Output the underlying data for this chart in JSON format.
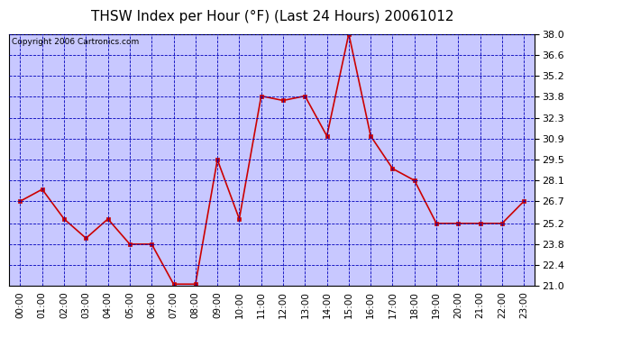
{
  "title": "THSW Index per Hour (°F) (Last 24 Hours) 20061012",
  "copyright": "Copyright 2006 Cartronics.com",
  "hours": [
    "00:00",
    "01:00",
    "02:00",
    "03:00",
    "04:00",
    "05:00",
    "06:00",
    "07:00",
    "08:00",
    "09:00",
    "10:00",
    "11:00",
    "12:00",
    "13:00",
    "14:00",
    "15:00",
    "16:00",
    "17:00",
    "18:00",
    "19:00",
    "20:00",
    "21:00",
    "22:00",
    "23:00"
  ],
  "values": [
    26.7,
    27.5,
    25.5,
    24.2,
    25.5,
    23.8,
    23.8,
    21.1,
    21.1,
    29.5,
    25.5,
    33.8,
    33.5,
    33.8,
    31.1,
    38.0,
    31.1,
    28.9,
    28.1,
    25.2,
    25.2,
    25.2,
    25.2,
    26.7
  ],
  "ymin": 21.0,
  "ymax": 38.0,
  "yticks": [
    21.0,
    22.4,
    23.8,
    25.2,
    26.7,
    28.1,
    29.5,
    30.9,
    32.3,
    33.8,
    35.2,
    36.6,
    38.0
  ],
  "line_color": "#cc0000",
  "marker_color": "#cc0000",
  "bg_color": "#c8c8ff",
  "outer_bg": "#ffffff",
  "grid_color": "#0000bb",
  "border_color": "#000000",
  "title_color": "#000000",
  "copyright_color": "#000000",
  "title_fontsize": 11,
  "copyright_fontsize": 6.5,
  "tick_fontsize": 7.5,
  "ytick_fontsize": 8.0
}
